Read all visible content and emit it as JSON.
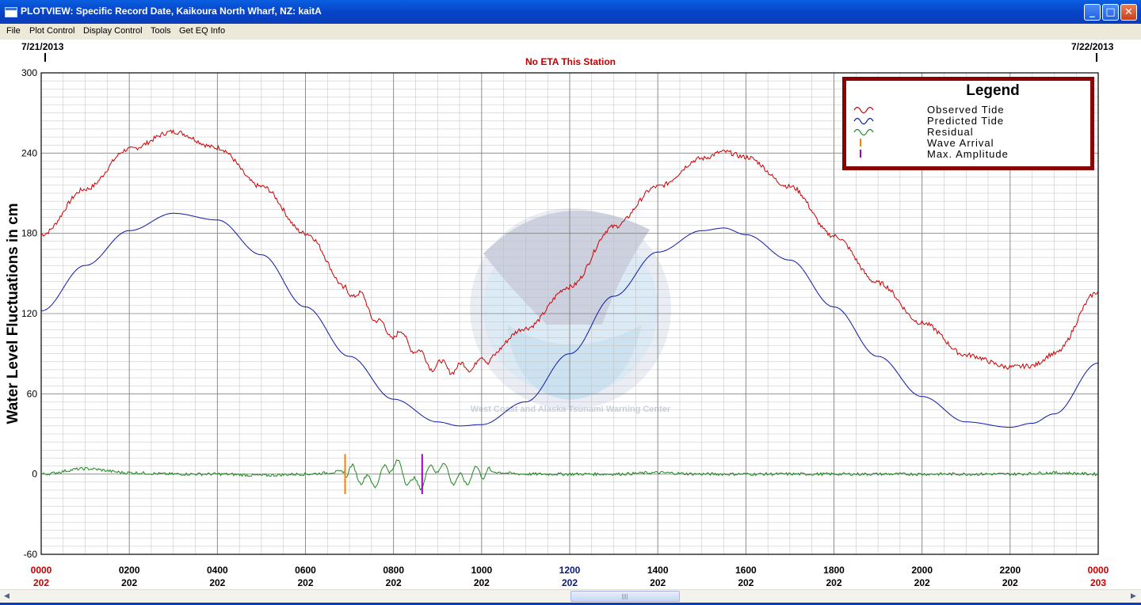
{
  "window": {
    "title": "PLOTVIEW: Specific Record Date, Kaikoura North Wharf, NZ: kaitA",
    "controls": [
      "minimize-icon",
      "maximize-icon",
      "close-icon"
    ]
  },
  "menu": [
    "File",
    "Plot Control",
    "Display Control",
    "Tools",
    "Get EQ Info"
  ],
  "plot": {
    "date_left": "7/21/2013",
    "date_right": "7/22/2013",
    "eta_text": "No ETA This Station",
    "y_axis_label": "Water Level Fluctuations in cm",
    "y_ticks": [
      "300",
      "240",
      "180",
      "120",
      "60",
      "0",
      "-60"
    ],
    "x_ticks": [
      {
        "time": "0000",
        "day": "202",
        "color": "#cc0000"
      },
      {
        "time": "0200",
        "day": "202",
        "color": "#000000"
      },
      {
        "time": "0400",
        "day": "202",
        "color": "#000000"
      },
      {
        "time": "0600",
        "day": "202",
        "color": "#000000"
      },
      {
        "time": "0800",
        "day": "202",
        "color": "#000000"
      },
      {
        "time": "1000",
        "day": "202",
        "color": "#000000"
      },
      {
        "time": "1200",
        "day": "202",
        "color": "#0a1a7a"
      },
      {
        "time": "1400",
        "day": "202",
        "color": "#000000"
      },
      {
        "time": "1600",
        "day": "202",
        "color": "#000000"
      },
      {
        "time": "1800",
        "day": "202",
        "color": "#000000"
      },
      {
        "time": "2000",
        "day": "202",
        "color": "#000000"
      },
      {
        "time": "2200",
        "day": "202",
        "color": "#000000"
      },
      {
        "time": "0000",
        "day": "203",
        "color": "#cc0000"
      }
    ],
    "watermark_text": "West Coast and Alaska Tsunami Warning Center",
    "legend": {
      "title": "Legend",
      "items": [
        {
          "label": "Observed Tide",
          "color": "#cc0000",
          "kind": "wave"
        },
        {
          "label": "Predicted Tide",
          "color": "#0a1aa8",
          "kind": "wave"
        },
        {
          "label": "Residual",
          "color": "#1a8a1a",
          "kind": "wave"
        },
        {
          "label": "Wave Arrival",
          "color": "#ff8000",
          "kind": "tick"
        },
        {
          "label": "Max. Amplitude",
          "color": "#a000c0",
          "kind": "tick"
        }
      ]
    }
  },
  "chart_data": {
    "type": "line",
    "xlabel": "",
    "ylabel": "Water Level Fluctuations in cm",
    "xlim": [
      0,
      24
    ],
    "ylim": [
      -60,
      300
    ],
    "grid": true,
    "legend_position": "top-right",
    "series": [
      {
        "name": "Observed Tide",
        "color": "#cc0000",
        "x": [
          0,
          1,
          2,
          3,
          4,
          5,
          6,
          7,
          8,
          9,
          9.5,
          10,
          11,
          12,
          13,
          14,
          15,
          15.5,
          16,
          17,
          18,
          19,
          20,
          21,
          22,
          22.5,
          23,
          24
        ],
        "y": [
          179,
          213,
          243,
          256,
          244,
          215,
          180,
          137,
          105,
          81,
          79,
          84,
          109,
          140,
          185,
          215,
          236,
          241,
          237,
          215,
          178,
          143,
          113,
          89,
          80,
          81,
          90,
          136
        ]
      },
      {
        "name": "Predicted Tide",
        "color": "#0a1aa8",
        "x": [
          0,
          1,
          2,
          3,
          4,
          5,
          6,
          7,
          8,
          9,
          9.5,
          10,
          11,
          12,
          13,
          14,
          15,
          15.5,
          16,
          17,
          18,
          19,
          20,
          21,
          22,
          22.5,
          23,
          24
        ],
        "y": [
          122,
          156,
          182,
          195,
          190,
          164,
          125,
          88,
          56,
          39,
          36,
          37,
          54,
          90,
          133,
          166,
          182,
          184,
          179,
          160,
          125,
          88,
          58,
          39,
          35,
          38,
          45,
          83
        ]
      },
      {
        "name": "Residual",
        "color": "#1a8a1a",
        "x": [
          0,
          1,
          2,
          3,
          4,
          5,
          6,
          7,
          7.5,
          8,
          8.5,
          9,
          9.5,
          10,
          11,
          12,
          13,
          14,
          15,
          16,
          17,
          18,
          19,
          20,
          21,
          22,
          23,
          24
        ],
        "y": [
          0,
          4,
          1,
          0,
          0,
          -1,
          0,
          2,
          -6,
          7,
          -8,
          6,
          -5,
          2,
          0,
          0,
          0,
          1,
          0,
          0,
          0,
          0,
          0,
          0,
          0,
          0,
          1,
          0
        ]
      }
    ],
    "markers": [
      {
        "name": "Wave Arrival",
        "x": 6.9,
        "color": "#ff8000"
      },
      {
        "name": "Max. Amplitude",
        "x": 8.65,
        "color": "#a000c0"
      }
    ]
  }
}
